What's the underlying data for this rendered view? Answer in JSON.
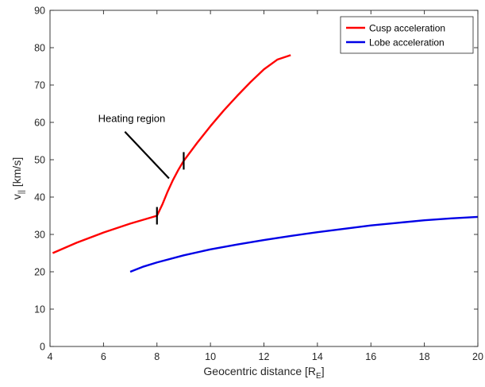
{
  "chart_data": {
    "type": "line",
    "xlabel": "Geocentric distance [R",
    "xlabel_sub": "E",
    "xlabel_suffix": "]",
    "ylabel": "v",
    "ylabel_sub": "||",
    "ylabel_suffix": " [km/s]",
    "xlim": [
      4,
      20
    ],
    "ylim": [
      0,
      90
    ],
    "xticks": [
      4,
      6,
      8,
      10,
      12,
      14,
      16,
      18,
      20
    ],
    "yticks": [
      0,
      10,
      20,
      30,
      40,
      50,
      60,
      70,
      80,
      90
    ],
    "grid": false,
    "legend_position": "top-right",
    "series": [
      {
        "name": "Cusp acceleration",
        "color": "#ff0000",
        "x": [
          4.1,
          5,
          6,
          7,
          8,
          8.2,
          8.4,
          8.6,
          8.8,
          9,
          9.5,
          10,
          10.5,
          11,
          11.5,
          12,
          12.5,
          13
        ],
        "y": [
          25,
          27.8,
          30.5,
          32.9,
          35,
          38,
          41.5,
          44.6,
          47.3,
          49.7,
          54.5,
          59,
          63.2,
          67.1,
          70.8,
          74.2,
          76.8,
          78
        ]
      },
      {
        "name": "Lobe acceleration",
        "color": "#0000e6",
        "x": [
          7,
          7.5,
          8,
          9,
          10,
          11,
          12,
          13,
          14,
          15,
          16,
          17,
          18,
          19,
          20
        ],
        "y": [
          20,
          21.4,
          22.5,
          24.4,
          26,
          27.3,
          28.5,
          29.6,
          30.6,
          31.5,
          32.4,
          33.1,
          33.8,
          34.3,
          34.7
        ]
      }
    ],
    "markers": [
      {
        "x": 8,
        "y": 35
      },
      {
        "x": 9,
        "y": 49.7
      }
    ],
    "annotations": [
      {
        "text": "Heating region",
        "text_x": 5.8,
        "text_y": 61,
        "arrow_from": [
          6.8,
          57.5
        ],
        "arrow_to": [
          8.45,
          45
        ]
      }
    ]
  }
}
